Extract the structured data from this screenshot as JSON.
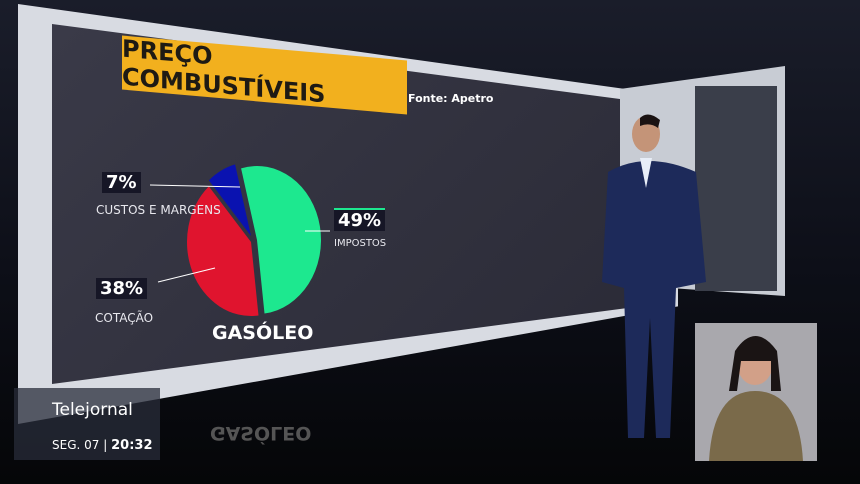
{
  "chart_data": {
    "type": "pie",
    "title": "PREÇO COMBUSTÍVEIS",
    "source": "Fonte: Apetro",
    "subtitle": "GASÓLEO",
    "slices": [
      {
        "label": "IMPOSTOS",
        "value": 49,
        "display": "49%",
        "color": "#1de88f"
      },
      {
        "label": "COTAÇÃO",
        "value": 38,
        "display": "38%",
        "color": "#e0142e"
      },
      {
        "label": "CUSTOS E MARGENS",
        "value": 7,
        "display": "7%",
        "color": "#0a12b0"
      }
    ]
  },
  "broadcast": {
    "program": "Telejornal",
    "day": "SEG. 07",
    "separator": "|",
    "time": "20:32"
  },
  "colors": {
    "title_bg": "#f2b01e",
    "screen": "#33333f"
  }
}
